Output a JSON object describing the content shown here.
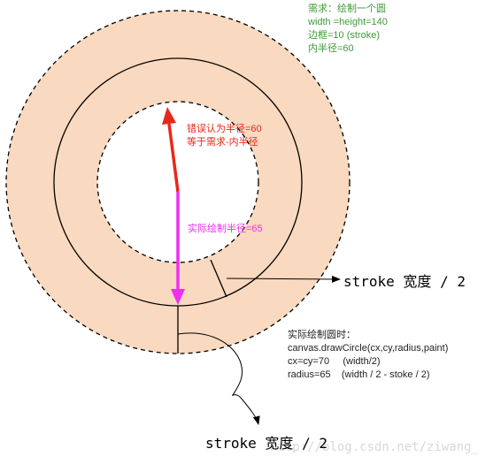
{
  "colors": {
    "ring_fill": "#f9d9bf",
    "background": "#ffffff",
    "stroke": "#000000",
    "wrong_radius": "#e8281a",
    "actual_radius": "#ee2ff0",
    "requirement_text": "#3f9a37",
    "wrong_text": "#e8281a",
    "actual_text": "#ee2ff0",
    "info_text": "#222222",
    "label_text": "#000000",
    "watermark": "#d8d8d8"
  },
  "requirement": {
    "line1": "需求：绘制一个圆",
    "line2": "width =height=140",
    "line3": "边框=10 (stroke)",
    "line4": "内半径=60"
  },
  "wrong_label": {
    "line1": "错误认为半径=60",
    "line2": "等于需求-内半径"
  },
  "actual_label": "实际绘制半径=65",
  "stroke_label_right": "stroke 宽度 / 2",
  "stroke_label_bottom": "stroke 宽度 / 2",
  "info": {
    "line1": "实际绘制圆时：",
    "line2": "canvas.drawCircle(cx,cy,radius,paint)",
    "line3": "cx=cy=70     (width/2)",
    "line4": "radius=65    (width / 2 - stoke / 2)"
  },
  "watermark": "http://blog.csdn.net/ziwang_"
}
